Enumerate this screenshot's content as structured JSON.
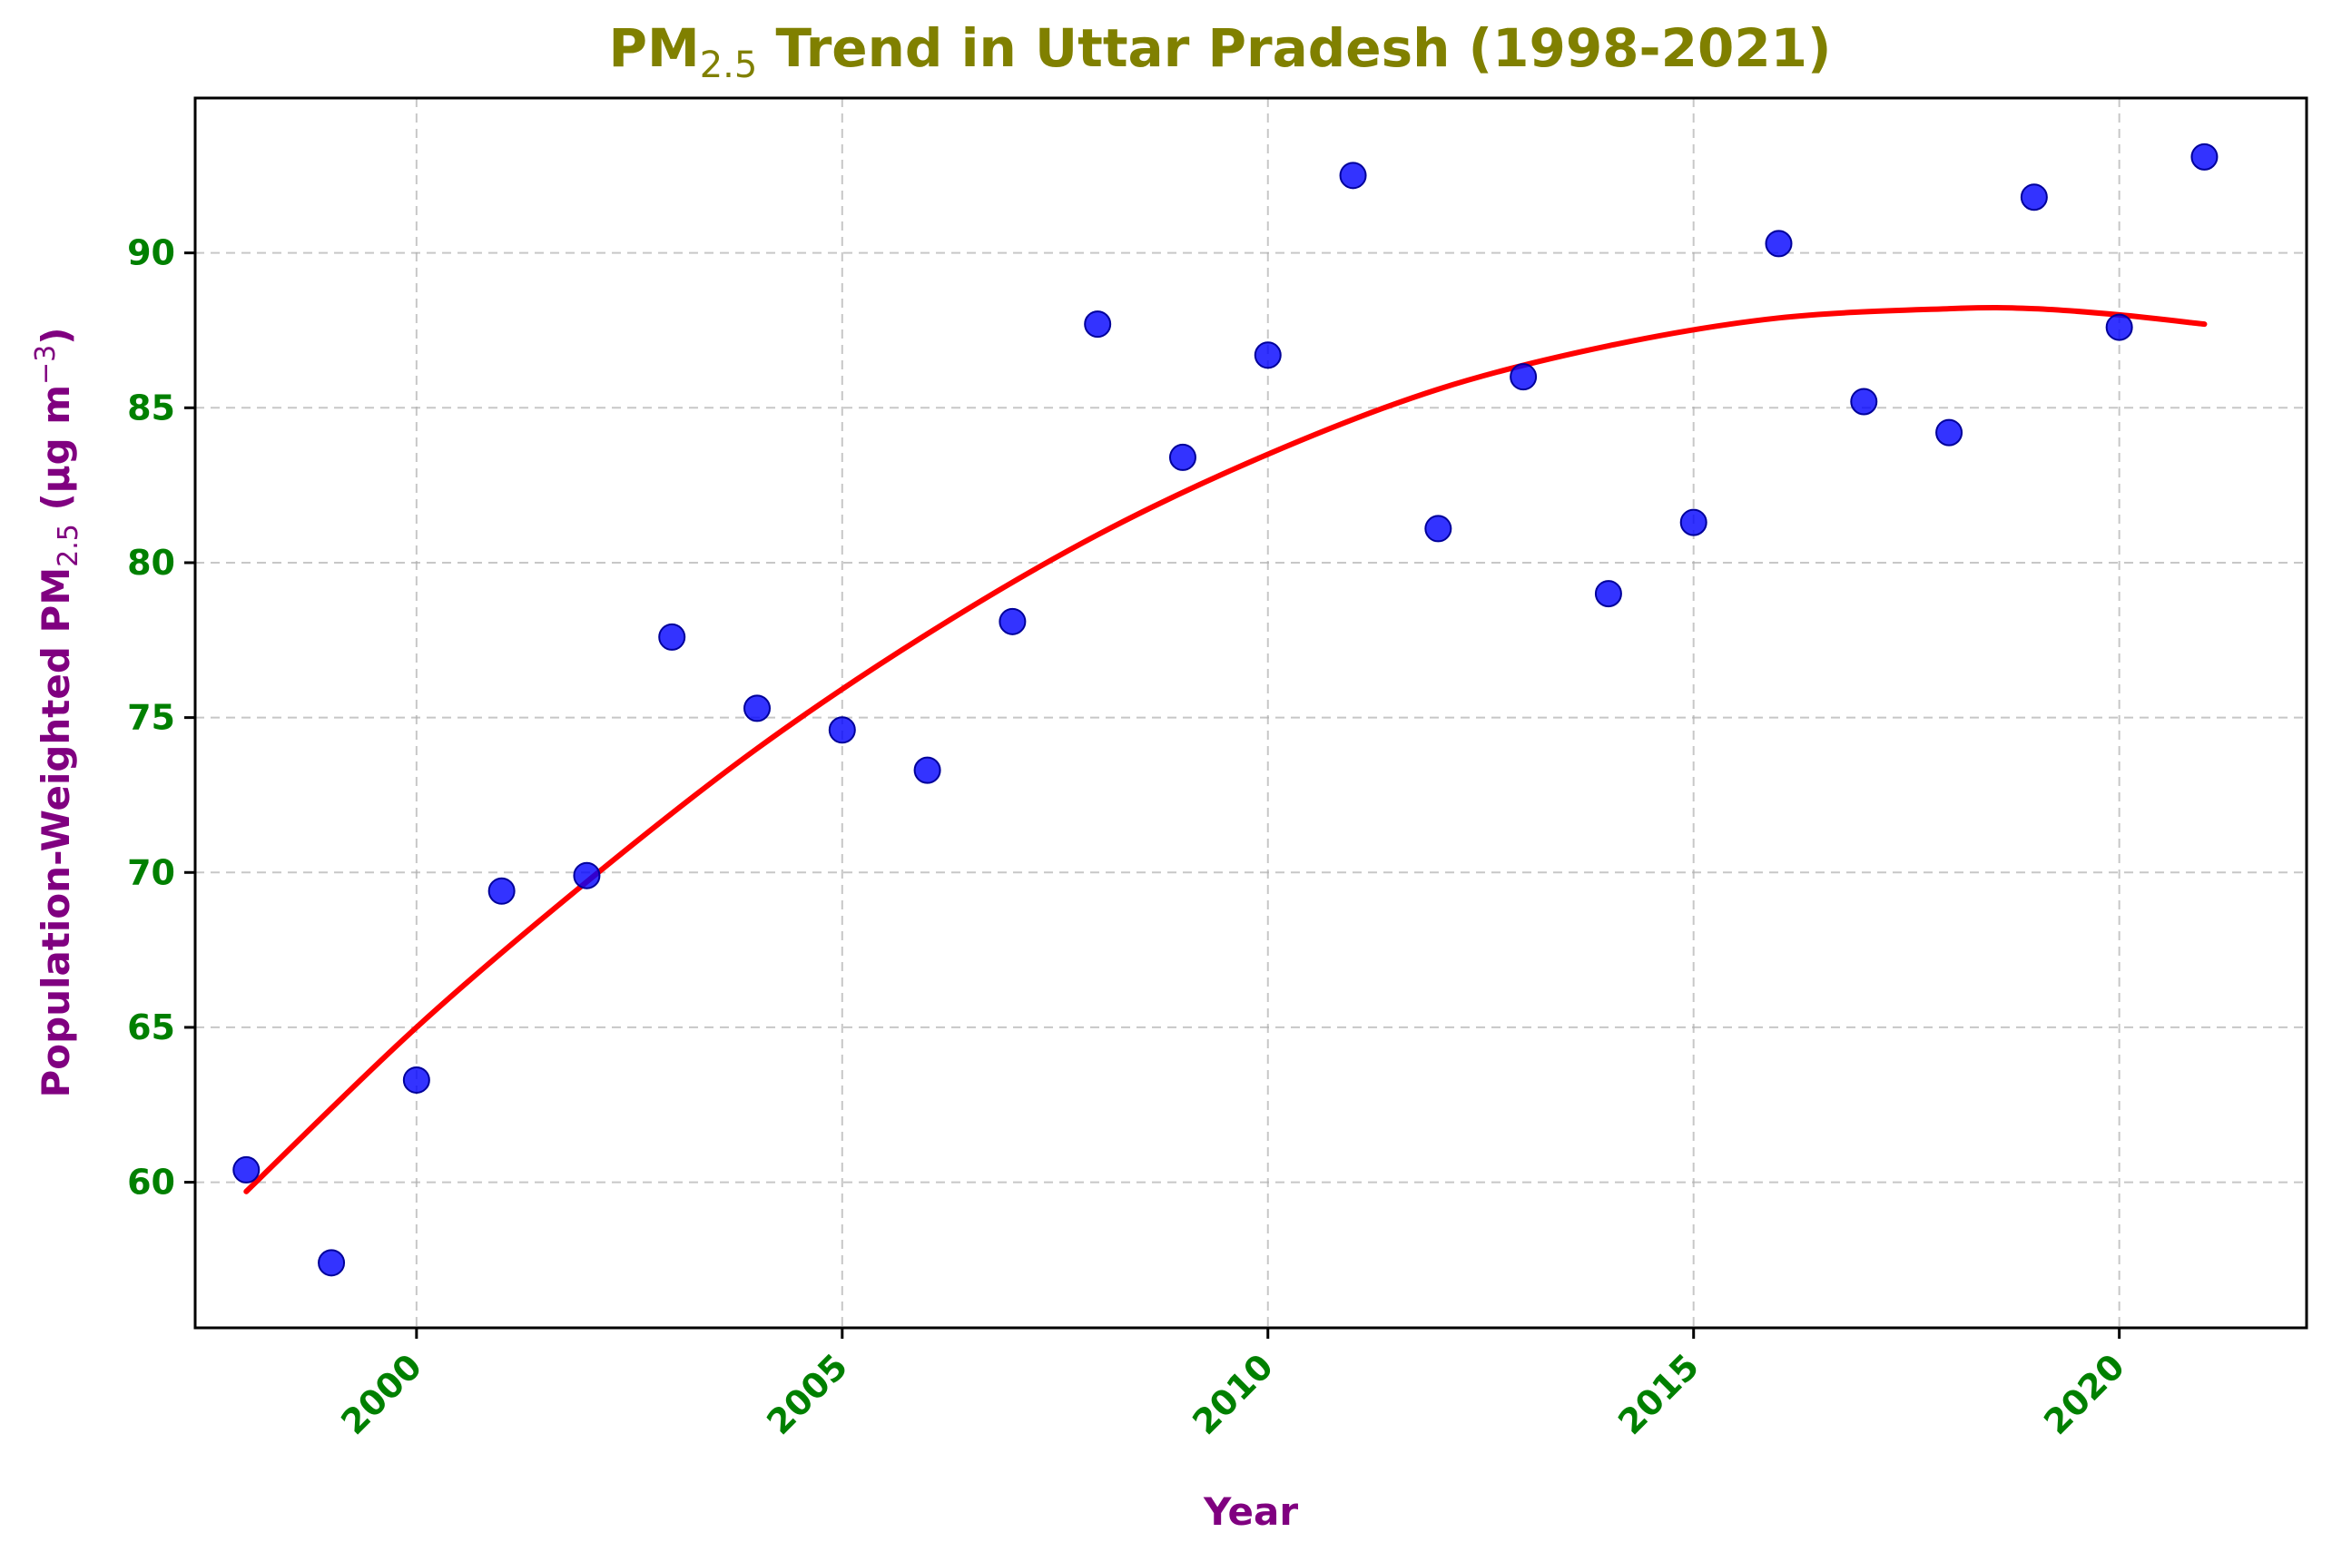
{
  "chart_data": {
    "type": "scatter",
    "title": {
      "prefix": "PM",
      "sub": "2.5",
      "suffix": " Trend in Uttar Pradesh (1998-2021)"
    },
    "xlabel": "Year",
    "ylabel": {
      "prefix": "Population-Weighted PM",
      "sub": "2.5",
      "suffix": " (µg m",
      "sup": "−3",
      "close": ")"
    },
    "xlim": [
      1997.4,
      2022.2
    ],
    "ylim": [
      55.3,
      95.0
    ],
    "xticks": [
      2000,
      2005,
      2010,
      2015,
      2020
    ],
    "yticks": [
      60,
      65,
      70,
      75,
      80,
      85,
      90
    ],
    "grid": true,
    "series": [
      {
        "kind": "points",
        "color": "#0000ff",
        "x": [
          1998,
          1999,
          2000,
          2001,
          2002,
          2003,
          2004,
          2005,
          2006,
          2007,
          2008,
          2009,
          2010,
          2011,
          2012,
          2013,
          2014,
          2015,
          2016,
          2017,
          2018,
          2019,
          2020,
          2021
        ],
        "y": [
          60.4,
          57.4,
          63.3,
          69.4,
          69.9,
          77.6,
          75.3,
          74.6,
          73.3,
          78.1,
          87.7,
          83.4,
          86.7,
          92.5,
          81.1,
          86.0,
          79.0,
          81.3,
          90.3,
          85.2,
          84.2,
          91.8,
          87.6,
          93.1
        ]
      },
      {
        "kind": "trend",
        "color": "#ff0000",
        "x": [
          1998,
          2000,
          2002,
          2004,
          2006,
          2008,
          2010,
          2012,
          2014,
          2016,
          2018,
          2019,
          2020,
          2021
        ],
        "y": [
          59.7,
          65.0,
          69.7,
          74.0,
          77.7,
          80.9,
          83.5,
          85.6,
          87.0,
          87.9,
          88.2,
          88.2,
          88.0,
          87.7
        ]
      }
    ],
    "colors": {
      "title": "#808000",
      "axis_label": "#800080",
      "tick_label": "#008000",
      "points": "#0000ff",
      "trend": "#ff0000"
    }
  }
}
